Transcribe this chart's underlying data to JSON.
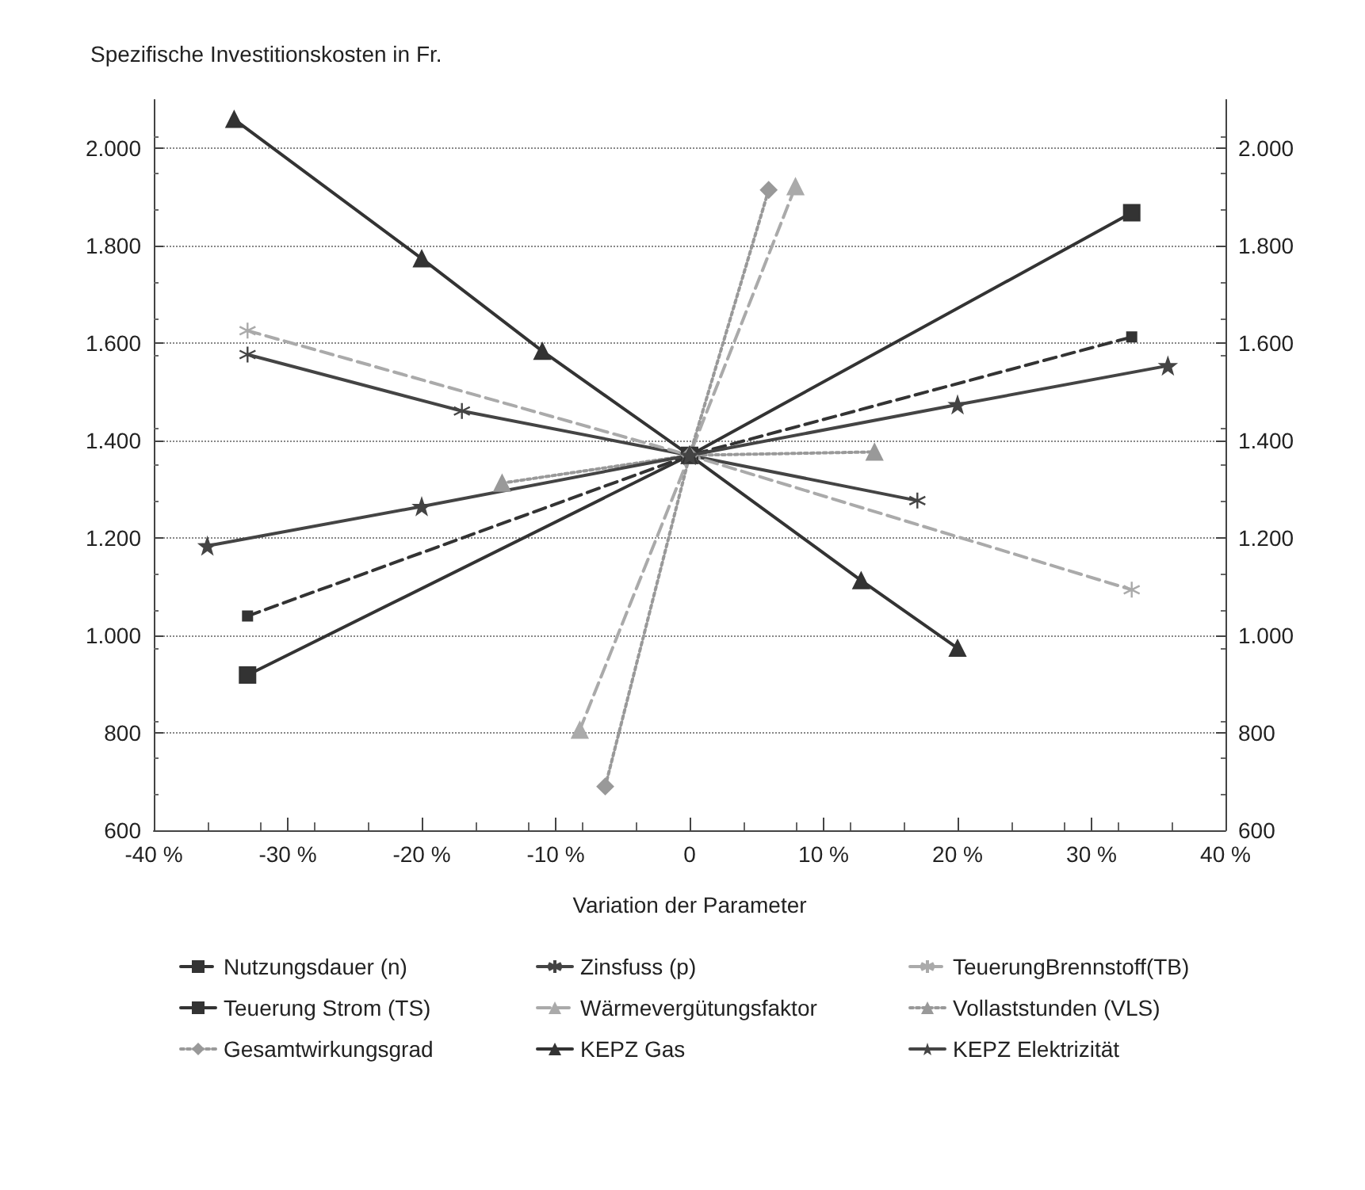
{
  "chart_data": {
    "type": "line",
    "ylabel": "Spezifische Investitionskosten in Fr.",
    "xlabel": "Variation der Parameter",
    "xlim": [
      -40,
      40
    ],
    "xticks": [
      {
        "value": -40,
        "label": "-40 %"
      },
      {
        "value": -30,
        "label": "-30 %"
      },
      {
        "value": -20,
        "label": "-20 %"
      },
      {
        "value": -10,
        "label": "-10 %"
      },
      0,
      {
        "value": 10,
        "label": "10 %"
      },
      {
        "value": 20,
        "label": "20 %"
      },
      {
        "value": 30,
        "label": "30 %"
      },
      {
        "value": 40,
        "label": "40 %"
      }
    ],
    "ylim": [
      600,
      2100
    ],
    "yticks": [
      600,
      800,
      {
        "value": 1000,
        "label": "1.000"
      },
      {
        "value": 1200,
        "label": "1.200"
      },
      {
        "value": 1400,
        "label": "1.400"
      },
      {
        "value": 1600,
        "label": "1.600"
      },
      {
        "value": 1800,
        "label": "1.800"
      },
      {
        "value": 2000,
        "label": "2.000"
      }
    ],
    "y2lim": [
      600,
      2100
    ],
    "y2ticks": [
      600,
      800,
      {
        "value": 1000,
        "label": "1.000"
      },
      {
        "value": 1200,
        "label": "1.200"
      },
      {
        "value": 1400,
        "label": "1.400"
      },
      {
        "value": 1600,
        "label": "1.600"
      },
      {
        "value": 1800,
        "label": "1.800"
      },
      {
        "value": 2000,
        "label": "2.000"
      }
    ],
    "grid": "y",
    "legend": "bottom",
    "series": [
      {
        "name": "Nutzungsdauer (n)",
        "color": "#333333",
        "marker": "square",
        "line_style": "dashed",
        "x": [
          -33,
          0,
          33
        ],
        "values": [
          1040,
          1370,
          1613
        ]
      },
      {
        "name": "Zinsfuss (p)",
        "color": "#444444",
        "marker": "cross",
        "line_style": "solid",
        "x": [
          -33,
          -17,
          0,
          17
        ],
        "values": [
          1577,
          1461,
          1370,
          1277
        ]
      },
      {
        "name": "TeuerungBrennstoff(TB)",
        "color": "#aaaaaa",
        "marker": "cross",
        "line_style": "dashed",
        "x": [
          -33,
          0,
          33
        ],
        "values": [
          1626,
          1370,
          1094
        ]
      },
      {
        "name": "Teuerung Strom (TS)",
        "color": "#333333",
        "marker": "square",
        "line_style": "solid",
        "x": [
          -33,
          0,
          33
        ],
        "values": [
          919,
          1370,
          1868
        ]
      },
      {
        "name": "Wärmevergütungsfaktor",
        "color": "#aaaaaa",
        "marker": "triangle",
        "line_style": "dashed",
        "x": [
          -8.2,
          0,
          7.9
        ],
        "values": [
          806,
          1370,
          1922
        ]
      },
      {
        "name": "Vollaststunden (VLS)",
        "color": "#999999",
        "marker": "triangle",
        "line_style": "dotted",
        "x": [
          -14,
          0,
          13.8
        ],
        "values": [
          1313,
          1370,
          1377
        ]
      },
      {
        "name": "Gesamtwirkungsgrad",
        "color": "#999999",
        "marker": "diamond",
        "line_style": "dotted",
        "x": [
          -6.3,
          0,
          5.9
        ],
        "values": [
          690,
          1370,
          1915
        ]
      },
      {
        "name": "KEPZ Gas",
        "color": "#333333",
        "marker": "triangle",
        "line_style": "solid",
        "x": [
          -34,
          -20,
          -11,
          0,
          12.8,
          20
        ],
        "values": [
          2060,
          1774,
          1584,
          1370,
          1113,
          974
        ]
      },
      {
        "name": "KEPZ Elektrizität",
        "color": "#444444",
        "marker": "star",
        "line_style": "solid",
        "x": [
          -36,
          -20,
          0,
          20,
          35.7
        ],
        "values": [
          1184,
          1265,
          1370,
          1474,
          1554
        ]
      }
    ]
  }
}
